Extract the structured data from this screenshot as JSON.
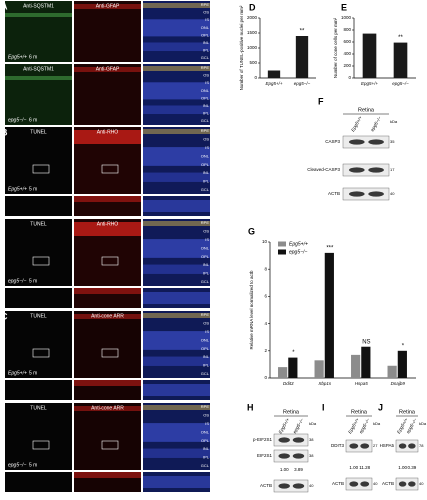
{
  "panels_left": [
    {
      "letter": "A",
      "rows": [
        {
          "labels": [
            "Anti-SQSTM1",
            "Anti-GFAP"
          ],
          "genotype": "Epg5+/+",
          "age": "6 m"
        },
        {
          "labels": [
            "Anti-SQSTM1",
            "Anti-GFAP"
          ],
          "genotype": "epg5−/−",
          "age": "6 m"
        }
      ]
    },
    {
      "letter": "B",
      "rows": [
        {
          "labels": [
            "TUNEL",
            "Anti-RHO"
          ],
          "genotype": "Epg5+/+",
          "age": "5 m"
        },
        {
          "labels": [
            "TUNEL",
            "Anti-RHO"
          ],
          "genotype": "epg5−/−",
          "age": "5 m"
        }
      ]
    },
    {
      "letter": "C",
      "rows": [
        {
          "labels": [
            "TUNEL",
            "Anti-cone ARR"
          ],
          "genotype": "Epg5+/+",
          "age": "5 m"
        },
        {
          "labels": [
            "TUNEL",
            "Anti-cone ARR"
          ],
          "genotype": "epg5−/−",
          "age": "5 m"
        }
      ]
    }
  ],
  "layers": [
    "RPE",
    "OS",
    "IS",
    "ONL",
    "OPL",
    "INL",
    "IPL",
    "GCL"
  ],
  "chart_data": [
    {
      "type": "bar",
      "panel": "D",
      "ylabel": "Number of TUNEL-positive nuclei per mm²",
      "categories": [
        "Epg5+/+",
        "epg5−/−"
      ],
      "values": [
        250,
        1400
      ],
      "color": "#1a1a1a",
      "annotations": [
        null,
        "**"
      ],
      "ylim": [
        0,
        2000
      ],
      "yticks": [
        0,
        500,
        1000,
        1500,
        2000
      ]
    },
    {
      "type": "bar",
      "panel": "E",
      "ylabel": "Number of cone cells per mm²",
      "categories": [
        "Epg5+/+",
        "epg5−/−"
      ],
      "values": [
        740,
        590
      ],
      "color": "#1a1a1a",
      "annotations": [
        null,
        "**"
      ],
      "ylim": [
        0,
        1000
      ],
      "yticks": [
        0,
        200,
        400,
        600,
        800,
        1000
      ]
    },
    {
      "type": "grouped-bar",
      "panel": "G",
      "ylabel": "Relative mRNA level normalized to actb",
      "categories": [
        "Ddit3",
        "Xbp1s",
        "Hspa5",
        "Dnajb9"
      ],
      "series": [
        {
          "name": "Epg5+/+",
          "color": "#8c8c8c",
          "values": [
            0.8,
            1.3,
            1.7,
            0.9
          ]
        },
        {
          "name": "epg5−/−",
          "color": "#111111",
          "values": [
            1.5,
            9.2,
            2.3,
            2.0
          ]
        }
      ],
      "annotations": [
        "*",
        "***",
        "NS",
        "*"
      ],
      "ylim": [
        0,
        10
      ],
      "yticks": [
        0,
        2,
        4,
        6,
        8,
        10
      ]
    }
  ],
  "blots": [
    {
      "panel": "F",
      "title": "Retina",
      "lanes": [
        "Epg5+/+",
        "epg5−/−"
      ],
      "unit": "kDa",
      "rows": [
        {
          "name": "CASP3",
          "kda": "35"
        },
        {
          "name": "Cleaved-CASP3",
          "kda": "17"
        },
        {
          "name": "ACTB",
          "kda": "40"
        }
      ]
    },
    {
      "panel": "H",
      "title": "Retina",
      "lanes": [
        "Epg5+/+",
        "epg5−/−"
      ],
      "unit": "kDa",
      "rows": [
        {
          "name": "p-EIF2S1",
          "kda": "38"
        },
        {
          "name": "EIF2S1",
          "kda": "38"
        },
        {
          "name": "ACTB",
          "kda": "40"
        }
      ],
      "quant": [
        "1.00",
        "3.89"
      ]
    },
    {
      "panel": "I",
      "title": "Retina",
      "lanes": [
        "Epg5+/+",
        "epg5−/−"
      ],
      "unit": "kDa",
      "rows": [
        {
          "name": "DDIT3",
          "kda": "27"
        },
        {
          "name": "ACTB",
          "kda": "40"
        }
      ],
      "quant": [
        "1.00",
        "11.28"
      ]
    },
    {
      "panel": "J",
      "title": "Retina",
      "lanes": [
        "Epg5+/+",
        "epg5−/−"
      ],
      "unit": "kDa",
      "rows": [
        {
          "name": "HSPA5",
          "kda": "78"
        },
        {
          "name": "ACTB",
          "kda": "40"
        }
      ],
      "quant": [
        "1.00",
        "0.39"
      ]
    }
  ]
}
